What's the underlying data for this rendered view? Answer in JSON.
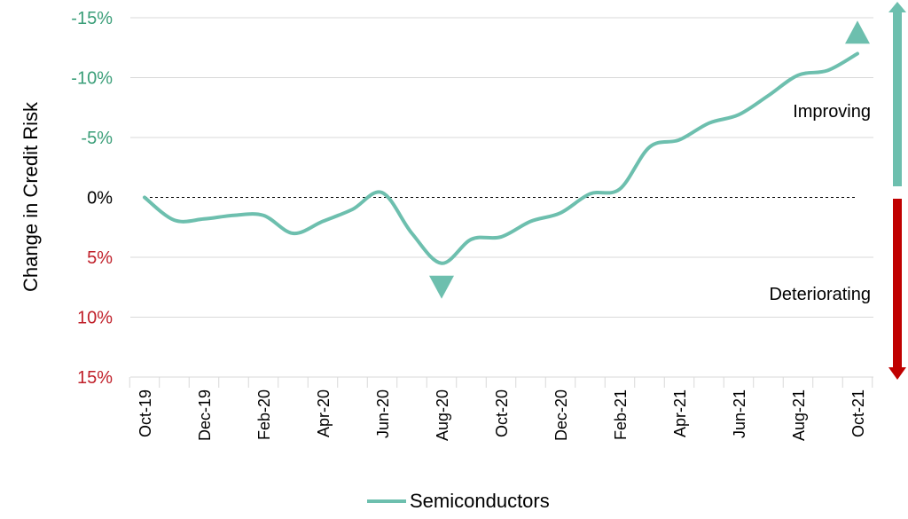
{
  "chart_data": {
    "type": "line",
    "ylabel": "Change in Credit Risk",
    "x": [
      "Oct-19",
      "Nov-19",
      "Dec-19",
      "Jan-20",
      "Feb-20",
      "Mar-20",
      "Apr-20",
      "May-20",
      "Jun-20",
      "Jul-20",
      "Aug-20",
      "Sep-20",
      "Oct-20",
      "Nov-20",
      "Dec-20",
      "Jan-21",
      "Feb-21",
      "Mar-21",
      "Apr-21",
      "May-21",
      "Jun-21",
      "Jul-21",
      "Aug-21",
      "Sep-21",
      "Oct-21"
    ],
    "x_tick_labels": [
      "Oct-19",
      "Dec-19",
      "Feb-20",
      "Apr-20",
      "Jun-20",
      "Aug-20",
      "Oct-20",
      "Dec-20",
      "Feb-21",
      "Apr-21",
      "Jun-21",
      "Aug-21",
      "Oct-21"
    ],
    "y_ticks": [
      {
        "value": -15,
        "label": "-15%",
        "color": "#3a9e78"
      },
      {
        "value": -10,
        "label": "-10%",
        "color": "#3a9e78"
      },
      {
        "value": -5,
        "label": "-5%",
        "color": "#3a9e78"
      },
      {
        "value": 0,
        "label": "0%",
        "color": "#000000"
      },
      {
        "value": 5,
        "label": "5%",
        "color": "#c0202a"
      },
      {
        "value": 10,
        "label": "10%",
        "color": "#c0202a"
      },
      {
        "value": 15,
        "label": "15%",
        "color": "#c0202a"
      }
    ],
    "ylim": [
      -15,
      15
    ],
    "y_inverted": true,
    "grid": "horizontal",
    "series": [
      {
        "name": "Semiconductors",
        "color": "#6dbfae",
        "values": [
          0,
          1.9,
          1.8,
          1.5,
          1.5,
          3.0,
          2.0,
          1.0,
          -0.4,
          3.0,
          5.5,
          3.5,
          3.3,
          2.0,
          1.3,
          -0.3,
          -0.7,
          -4.2,
          -4.8,
          -6.2,
          -6.9,
          -8.5,
          -10.2,
          -10.6,
          -12.0
        ]
      }
    ],
    "markers": [
      {
        "type": "triangle-down",
        "x": "Aug-20",
        "y": 7.5,
        "color": "#6dbfae"
      },
      {
        "type": "triangle-up",
        "x": "Oct-21",
        "y": -13.8,
        "color": "#6dbfae"
      }
    ],
    "annotations": [
      {
        "text": "Improving",
        "direction": "up",
        "color": "#6dbfae"
      },
      {
        "text": "Deteriorating",
        "direction": "down",
        "color": "#c00000"
      }
    ],
    "reference_line": {
      "y": 0,
      "style": "dashed",
      "color": "#000000"
    },
    "legend": {
      "position": "bottom-center"
    }
  }
}
